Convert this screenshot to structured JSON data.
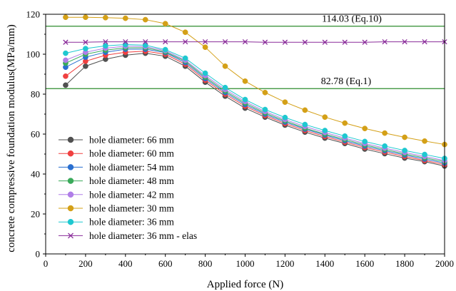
{
  "chart_data": {
    "type": "line",
    "xlabel": "Applied force (N)",
    "ylabel": "concrete compressive foundation modulus(MPa/mm)",
    "xlim": [
      0,
      2000
    ],
    "ylim": [
      0,
      120
    ],
    "x_ticks": [
      "0",
      "200",
      "400",
      "600",
      "800",
      "1000",
      "1200",
      "1400",
      "1600",
      "1800",
      "2000"
    ],
    "y_ticks": [
      "0",
      "20",
      "40",
      "60",
      "80",
      "100",
      "120"
    ],
    "grid": false,
    "legend_position": "bottom-left",
    "x": [
      100,
      200,
      300,
      400,
      500,
      600,
      700,
      800,
      900,
      1000,
      1100,
      1200,
      1300,
      1400,
      1500,
      1600,
      1700,
      1800,
      1900,
      2000
    ],
    "reference_lines": [
      {
        "value": 114.03,
        "label": "114.03 (Eq.10)",
        "color": "#2e8b2e"
      },
      {
        "value": 82.78,
        "label": "82.78 (Eq.1)",
        "color": "#2e8b2e"
      }
    ],
    "series": [
      {
        "name": "hole diameter: 66 mm",
        "color": "#505050",
        "marker": "circle",
        "values": [
          84.5,
          94,
          97.5,
          99.5,
          100.5,
          99,
          94,
          86,
          79,
          73,
          68.5,
          64.5,
          61,
          58,
          55.3,
          52.5,
          50.2,
          48,
          46.2,
          44
        ]
      },
      {
        "name": "hole diameter: 60 mm",
        "color": "#f04040",
        "marker": "circle",
        "values": [
          89,
          96.5,
          99.5,
          101,
          101.5,
          100,
          95,
          87,
          80,
          74,
          69.3,
          65.3,
          61.8,
          58.8,
          56,
          53.3,
          51,
          48.8,
          46.8,
          44.8
        ]
      },
      {
        "name": "hole diameter: 54 mm",
        "color": "#2a6fd0",
        "marker": "circle",
        "values": [
          93.5,
          98.5,
          101,
          102.5,
          102.5,
          100.8,
          95.8,
          87.8,
          80.8,
          74.8,
          70,
          66,
          62.5,
          59.5,
          56.7,
          54,
          51.7,
          49.5,
          47.5,
          45.5
        ]
      },
      {
        "name": "hole diameter: 48 mm",
        "color": "#3aaa5a",
        "marker": "circle",
        "values": [
          95.5,
          100,
          102,
          103.2,
          103.2,
          101.2,
          96.5,
          88.5,
          81.5,
          75.5,
          70.6,
          66.6,
          63,
          60,
          57.3,
          54.6,
          52.3,
          50.1,
          48.1,
          46.2
        ]
      },
      {
        "name": "hole diameter: 42 mm",
        "color": "#b07ee8",
        "marker": "circle",
        "values": [
          97,
          101,
          103,
          104,
          103.8,
          101.8,
          97,
          89.3,
          82.3,
          76.3,
          71.3,
          67.3,
          63.8,
          60.8,
          58,
          55.3,
          53,
          50.8,
          48.8,
          46.8
        ]
      },
      {
        "name": "hole diameter: 30 mm",
        "color": "#d4a017",
        "marker": "circle",
        "values": [
          118.5,
          118.5,
          118.3,
          118,
          117.3,
          115.3,
          111,
          103.5,
          94,
          86.5,
          80.8,
          76,
          72,
          68.5,
          65.5,
          62.8,
          60.5,
          58.4,
          56.5,
          54.8
        ]
      },
      {
        "name": "hole diameter: 36 mm",
        "color": "#1ec8d0",
        "marker": "circle",
        "values": [
          100.5,
          102.8,
          104.2,
          104.8,
          104.5,
          102.3,
          98,
          90.5,
          83.3,
          77.3,
          72.3,
          68.3,
          64.8,
          61.8,
          59,
          56.3,
          54,
          51.8,
          49.8,
          47.8
        ]
      },
      {
        "name": "hole diameter: 36 mm - elas",
        "color": "#8a2c9a",
        "marker": "x",
        "values": [
          106,
          106,
          106.2,
          106.2,
          106.2,
          106.2,
          106.2,
          106.2,
          106.2,
          106.2,
          106,
          106,
          106,
          106,
          106,
          106,
          106.2,
          106.2,
          106.2,
          106.2
        ]
      }
    ]
  }
}
